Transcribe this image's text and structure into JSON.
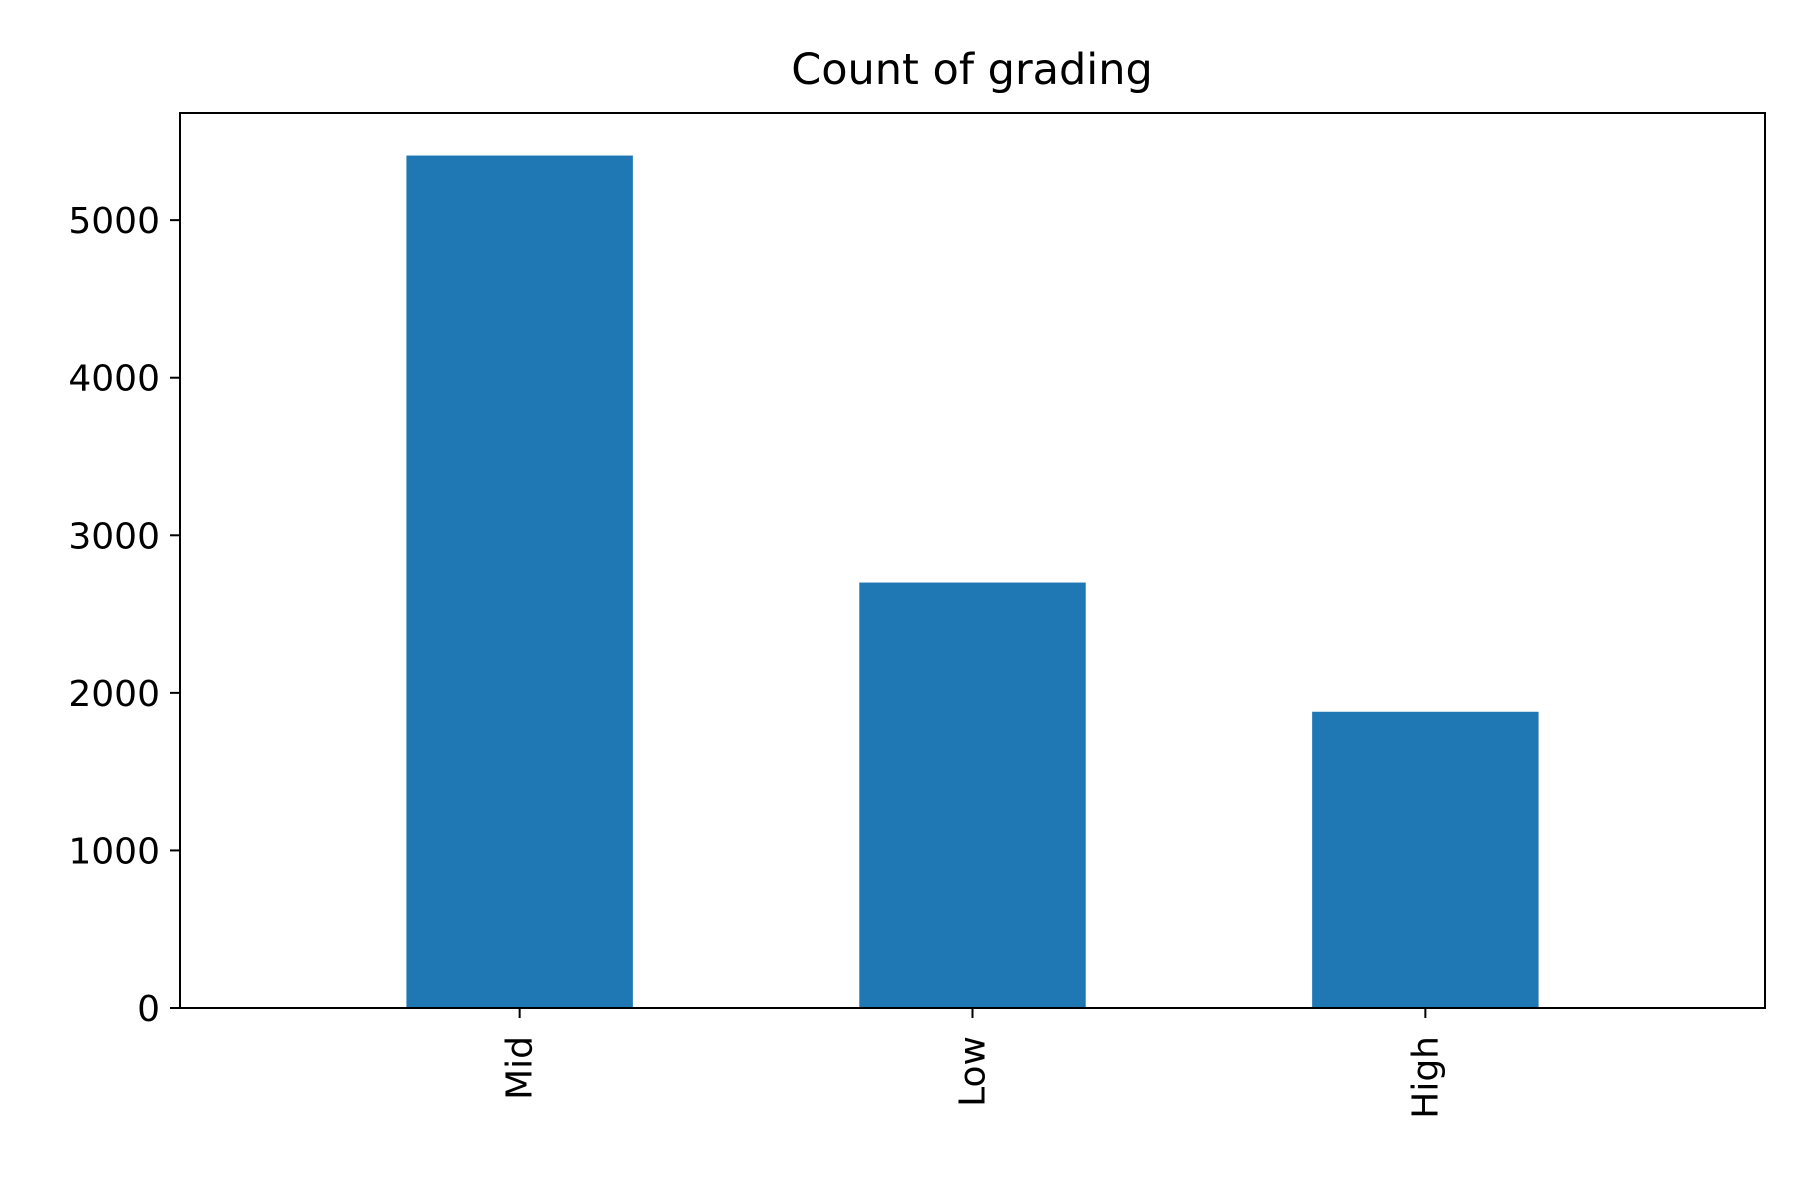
{
  "chart_data": {
    "type": "bar",
    "title": "Count of grading",
    "xlabel": "",
    "ylabel": "",
    "categories": [
      "Mid",
      "Low",
      "High"
    ],
    "values": [
      5410,
      2700,
      1880
    ],
    "ylim": [
      0,
      5680
    ],
    "yticks": [
      0,
      1000,
      2000,
      3000,
      4000,
      5000
    ],
    "ytick_labels": [
      "0",
      "1000",
      "2000",
      "3000",
      "4000",
      "5000"
    ],
    "xtick_rotation": "vertical",
    "grid": false,
    "legend": "none",
    "bar_color": "#1f77b4"
  }
}
